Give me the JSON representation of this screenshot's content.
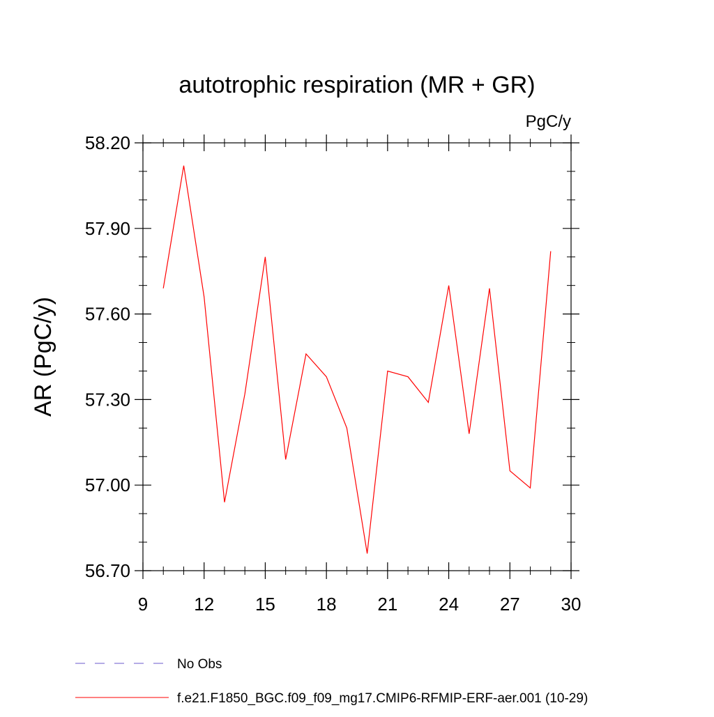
{
  "units_label": "PgC/y",
  "chart_data": {
    "type": "line",
    "title": "autotrophic respiration (MR + GR)",
    "xlabel": "",
    "ylabel": "AR  (PgC/y)",
    "xlim": [
      9,
      30
    ],
    "ylim": [
      56.7,
      58.2
    ],
    "x_ticks": [
      9,
      12,
      15,
      18,
      21,
      24,
      27,
      30
    ],
    "x_tick_labels": [
      "9",
      "12",
      "15",
      "18",
      "21",
      "24",
      "27",
      "30"
    ],
    "y_ticks": [
      56.7,
      57.0,
      57.3,
      57.6,
      57.9,
      58.2
    ],
    "y_tick_labels": [
      "56.70",
      "57.00",
      "57.30",
      "57.60",
      "57.90",
      "58.20"
    ],
    "grid": false,
    "legend_placement": "bottom-left",
    "x": [
      10,
      11,
      12,
      13,
      14,
      15,
      16,
      17,
      18,
      19,
      20,
      21,
      22,
      23,
      24,
      25,
      26,
      27,
      28,
      29
    ],
    "series": [
      {
        "name": "f.e21.F1850_BGC.f09_f09_mg17.CMIP6-RFMIP-ERF-aer.001 (10-29)",
        "color": "#ff0000",
        "dash": "solid",
        "values": [
          57.69,
          58.12,
          57.66,
          56.94,
          57.32,
          57.8,
          57.09,
          57.46,
          57.38,
          57.2,
          56.76,
          57.4,
          57.38,
          57.29,
          57.7,
          57.18,
          57.69,
          57.05,
          56.99,
          57.82
        ]
      }
    ],
    "legend": [
      {
        "label": "No Obs",
        "color": "#6a5acd",
        "dash": "dashed"
      },
      {
        "label": "f.e21.F1850_BGC.f09_f09_mg17.CMIP6-RFMIP-ERF-aer.001 (10-29)",
        "color": "#ff0000",
        "dash": "solid"
      }
    ]
  }
}
